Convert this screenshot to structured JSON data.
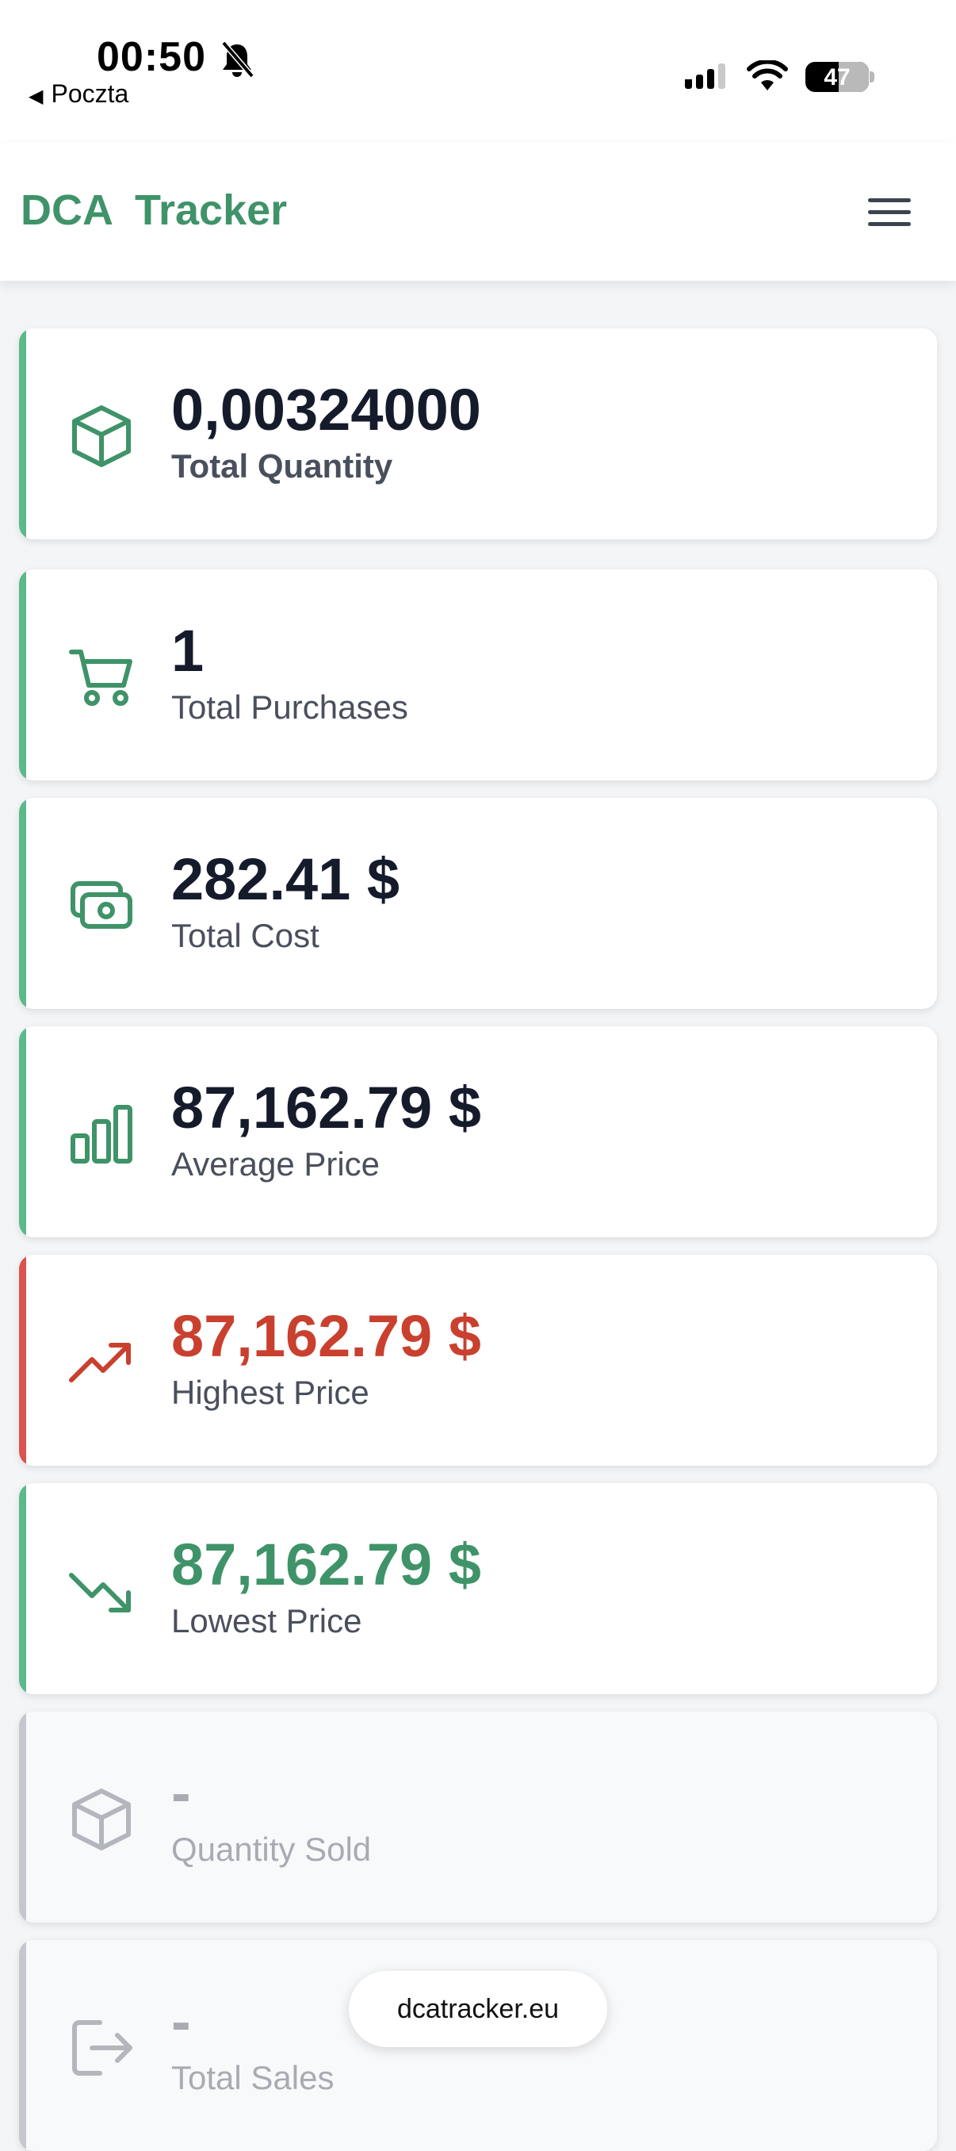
{
  "status_bar": {
    "time": "00:50",
    "back_label": "Poczta",
    "battery": "47"
  },
  "header": {
    "title": "DCA Tracker",
    "menu_icon": "hamburger-menu-icon"
  },
  "colors": {
    "brand": "#3f9368",
    "accent_green": "#5bb98a",
    "accent_red": "#d9534f",
    "value_red": "#c9402f",
    "value_green": "#3f9368",
    "muted": "#c4c7cd"
  },
  "stats": [
    {
      "value": "0,00324000",
      "label": "Total Quantity",
      "icon": "box-icon"
    },
    {
      "value": "1",
      "label": "Total Purchases",
      "icon": "shopping-cart-icon"
    },
    {
      "value": "282.41 $",
      "label": "Total Cost",
      "icon": "cash-icon"
    },
    {
      "value": "87,162.79 $",
      "label": "Average Price",
      "icon": "bar-chart-icon"
    },
    {
      "value": "87,162.79 $",
      "label": "Highest Price",
      "icon": "trending-up-icon"
    },
    {
      "value": "87,162.79 $",
      "label": "Lowest Price",
      "icon": "trending-down-icon"
    },
    {
      "value": "-",
      "label": "Quantity Sold",
      "icon": "box-icon"
    },
    {
      "value": "-",
      "label": "Total Sales",
      "icon": "logout-icon"
    }
  ],
  "url_bar": {
    "domain": "dcatracker.eu"
  }
}
